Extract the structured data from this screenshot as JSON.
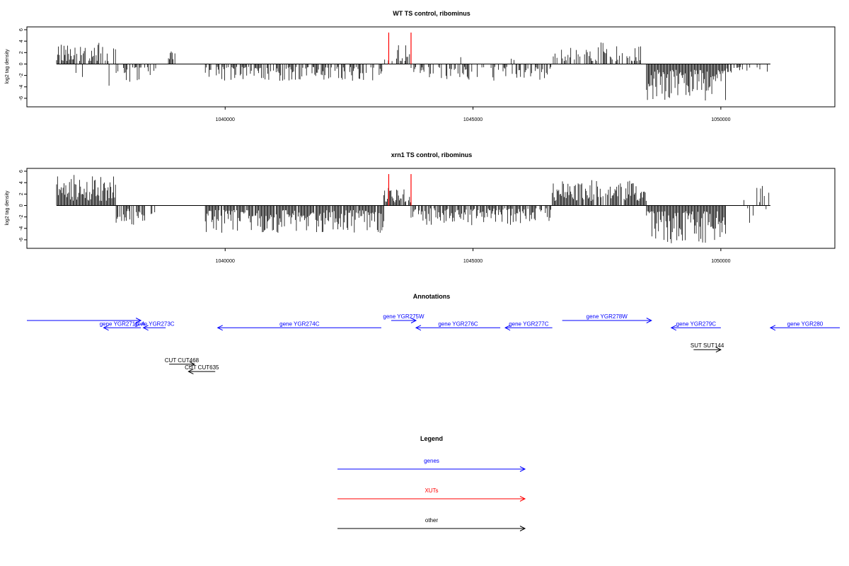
{
  "chart_data": [
    {
      "type": "bar",
      "title": "WT TS control, ribominus",
      "ylabel": "log2 tag density",
      "ylim": [
        -7,
        6
      ],
      "yticks": [
        -6,
        -4,
        -2,
        0,
        2,
        4,
        6
      ],
      "xlim": [
        1036000,
        1052300
      ],
      "xticks": [
        1040000,
        1045000,
        1050000
      ],
      "markers": [
        1043300,
        1043750
      ],
      "segments": [
        {
          "from": 1036600,
          "to": 1037800,
          "min": 0.5,
          "max": 3.8,
          "density": 0.75,
          "pos": 0.92
        },
        {
          "from": 1037800,
          "to": 1038600,
          "min": 0.5,
          "max": 3.2,
          "density": 0.45,
          "pos": 0.0
        },
        {
          "from": 1038800,
          "to": 1039000,
          "min": 0.8,
          "max": 2.2,
          "density": 0.5,
          "pos": 1.0
        },
        {
          "from": 1039600,
          "to": 1043200,
          "min": 0.5,
          "max": 3.0,
          "density": 0.55,
          "pos": 0.0
        },
        {
          "from": 1043200,
          "to": 1043750,
          "min": 0.5,
          "max": 3.5,
          "density": 0.7,
          "pos": 1.0
        },
        {
          "from": 1043750,
          "to": 1046600,
          "min": 0.5,
          "max": 3.0,
          "density": 0.5,
          "pos": 0.03
        },
        {
          "from": 1046600,
          "to": 1048500,
          "min": 0.5,
          "max": 3.8,
          "density": 0.45,
          "pos": 1.0
        },
        {
          "from": 1048500,
          "to": 1050100,
          "min": 1.0,
          "max": 6.5,
          "density": 1.0,
          "pos": 0.0
        },
        {
          "from": 1050100,
          "to": 1051000,
          "min": 0.5,
          "max": 1.5,
          "density": 0.25,
          "pos": 0.0
        }
      ]
    },
    {
      "type": "bar",
      "title": "xrn1 TS control, ribominus",
      "ylabel": "log2 tag density",
      "ylim": [
        -7,
        6
      ],
      "yticks": [
        -6,
        -4,
        -2,
        0,
        2,
        4,
        6
      ],
      "xlim": [
        1036000,
        1052300
      ],
      "xticks": [
        1040000,
        1045000,
        1050000
      ],
      "markers": [
        1043300,
        1043750
      ],
      "segments": [
        {
          "from": 1036600,
          "to": 1037800,
          "min": 0.8,
          "max": 5.5,
          "density": 1.0,
          "pos": 1.0
        },
        {
          "from": 1037800,
          "to": 1038600,
          "min": 0.5,
          "max": 3.5,
          "density": 0.55,
          "pos": 0.0
        },
        {
          "from": 1039600,
          "to": 1043200,
          "min": 0.8,
          "max": 4.8,
          "density": 0.95,
          "pos": 0.0
        },
        {
          "from": 1043200,
          "to": 1043750,
          "min": 0.5,
          "max": 3.5,
          "density": 0.95,
          "pos": 1.0
        },
        {
          "from": 1043750,
          "to": 1046600,
          "min": 0.5,
          "max": 3.6,
          "density": 0.8,
          "pos": 0.0
        },
        {
          "from": 1046600,
          "to": 1048500,
          "min": 0.8,
          "max": 4.5,
          "density": 0.85,
          "pos": 1.0
        },
        {
          "from": 1048500,
          "to": 1050100,
          "min": 1.0,
          "max": 6.8,
          "density": 1.0,
          "pos": 0.0
        },
        {
          "from": 1050300,
          "to": 1051000,
          "min": 0.5,
          "max": 3.8,
          "density": 0.3,
          "pos": 0.5
        }
      ]
    }
  ],
  "annotations": {
    "title": "Annotations",
    "items": [
      {
        "label": "",
        "start": 1036000,
        "end": 1038300,
        "row": 0,
        "strand": "+",
        "kind": "gene"
      },
      {
        "label": "gene YGR271C-A",
        "start": 1037550,
        "end": 1038300,
        "row": 1,
        "strand": "-",
        "kind": "gene"
      },
      {
        "label": "gene YGR273C",
        "start": 1038350,
        "end": 1038800,
        "row": 1,
        "strand": "-",
        "kind": "gene"
      },
      {
        "label": "gene YGR274C",
        "start": 1039850,
        "end": 1043150,
        "row": 1,
        "strand": "-",
        "kind": "gene"
      },
      {
        "label": "gene YGR275W",
        "start": 1043350,
        "end": 1043850,
        "row": 0,
        "strand": "+",
        "kind": "gene"
      },
      {
        "label": "gene YGR276C",
        "start": 1043850,
        "end": 1045550,
        "row": 1,
        "strand": "-",
        "kind": "gene"
      },
      {
        "label": "gene YGR277C",
        "start": 1045650,
        "end": 1046600,
        "row": 1,
        "strand": "-",
        "kind": "gene"
      },
      {
        "label": "gene YGR278W",
        "start": 1046800,
        "end": 1048600,
        "row": 0,
        "strand": "+",
        "kind": "gene"
      },
      {
        "label": "gene YGR279C",
        "start": 1049000,
        "end": 1050000,
        "row": 1,
        "strand": "-",
        "kind": "gene"
      },
      {
        "label": "gene YGR280",
        "start": 1051000,
        "end": 1052400,
        "row": 1,
        "strand": "-",
        "kind": "gene"
      },
      {
        "label": "SUT SUT144",
        "start": 1049450,
        "end": 1050000,
        "row": 4,
        "strand": "+",
        "kind": "other"
      },
      {
        "label": "CUT CUT468",
        "start": 1038870,
        "end": 1039380,
        "row": 6,
        "strand": "+",
        "kind": "other"
      },
      {
        "label": "CUT CUT635",
        "start": 1039260,
        "end": 1039800,
        "row": 7,
        "strand": "-",
        "kind": "other"
      }
    ]
  },
  "legend": {
    "title": "Legend",
    "items": [
      {
        "label": "genes",
        "color": "#0000ff"
      },
      {
        "label": "XUTs",
        "color": "#ff0000"
      },
      {
        "label": "other",
        "color": "#000000"
      }
    ]
  },
  "colors": {
    "gene": "#0000ff",
    "other": "#000000",
    "marker": "#ff0000",
    "bar": "#000000"
  }
}
